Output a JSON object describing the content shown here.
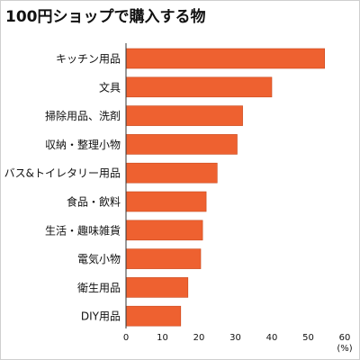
{
  "colors": {
    "bar": "#ee6130",
    "bar_stroke": "#c94a1f",
    "axis": "#333333",
    "background": "#ffffff"
  },
  "chart_data": {
    "type": "bar",
    "orientation": "horizontal",
    "title": "100円ショップで購入する物",
    "xlabel": "",
    "ylabel": "",
    "unit_label": "(%)",
    "xlim": [
      0,
      60
    ],
    "ticks": [
      "0",
      "10",
      "20",
      "30",
      "40",
      "50",
      "60"
    ],
    "tick_values": [
      0,
      10,
      20,
      30,
      40,
      50,
      60
    ],
    "grid": false,
    "categories": [
      "キッチン用品",
      "文具",
      "掃除用品、洗剤",
      "収納・整理小物",
      "バス&トイレタリー用品",
      "食品・飲料",
      "生活・趣味雑貨",
      "電気小物",
      "衛生用品",
      "DIY用品"
    ],
    "values": [
      54.5,
      40,
      32,
      30.5,
      25,
      22,
      21,
      20.5,
      17,
      15
    ]
  }
}
